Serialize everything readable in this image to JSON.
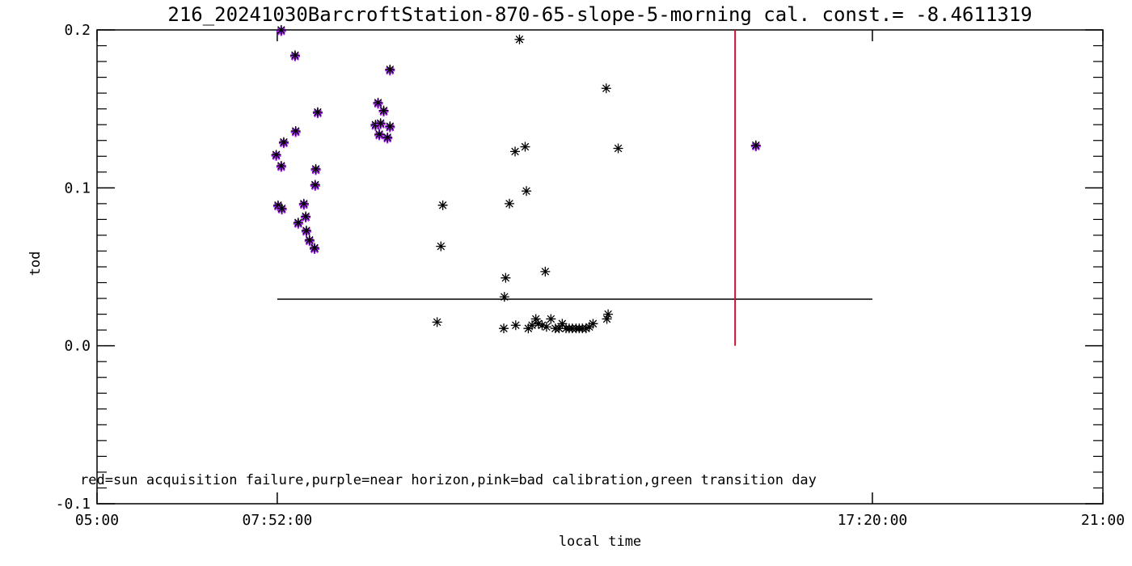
{
  "title": "216_20241030BarcroftStation-870-65-slope-5-morning cal. const.= -8.4611319",
  "legend_note": "red=sun acquisition failure,purple=near horizon,pink=bad calibration,green transition day",
  "colors": {
    "foreground": "#000000",
    "purple_point": "#A020F0",
    "vertical_line": "#C81035",
    "background": "#ffffff"
  },
  "chart_data": {
    "type": "scatter",
    "title": "216_20241030BarcroftStation-870-65-slope-5-morning cal. const.= -8.4611319",
    "xlabel": "local time",
    "ylabel": "tod",
    "x_range_hours": [
      5,
      21
    ],
    "ylim": [
      -0.1,
      0.2
    ],
    "grid": false,
    "marker": "asterisk",
    "x_ticks": [
      {
        "label": "05:00",
        "t": 5.0
      },
      {
        "label": "07:52:00",
        "t": 7.8667
      },
      {
        "label": "17:20:00",
        "t": 17.3333
      },
      {
        "label": "21:00",
        "t": 21.0
      }
    ],
    "y_ticks": [
      {
        "label": "0.2",
        "v": 0.2
      },
      {
        "label": "0.1",
        "v": 0.1
      },
      {
        "label": "0.0",
        "v": 0.0
      },
      {
        "label": "-0.1",
        "v": -0.1
      }
    ],
    "y_minor_step": 0.01,
    "annotations": {
      "horizontal_line": {
        "v": 0.0295,
        "t_start": 7.8667,
        "t_end": 17.3333,
        "color": "#000000"
      },
      "vertical_line": {
        "t": 15.15,
        "v_top": 0.2,
        "v_bottom": 0.0,
        "color": "#C81035"
      }
    },
    "series": [
      {
        "name": "near horizon (purple over black)",
        "color": "#A020F0",
        "points": [
          [
            7.93,
            0.2
          ],
          [
            8.15,
            0.184
          ],
          [
            9.66,
            0.175
          ],
          [
            9.47,
            0.154
          ],
          [
            9.56,
            0.149
          ],
          [
            8.51,
            0.148
          ],
          [
            8.16,
            0.136
          ],
          [
            7.97,
            0.129
          ],
          [
            9.43,
            0.14
          ],
          [
            9.51,
            0.141
          ],
          [
            9.66,
            0.139
          ],
          [
            9.49,
            0.134
          ],
          [
            9.62,
            0.132
          ],
          [
            7.85,
            0.121
          ],
          [
            7.93,
            0.114
          ],
          [
            8.48,
            0.112
          ],
          [
            8.47,
            0.102
          ],
          [
            7.88,
            0.089
          ],
          [
            7.94,
            0.087
          ],
          [
            8.29,
            0.09
          ],
          [
            8.32,
            0.082
          ],
          [
            8.2,
            0.078
          ],
          [
            8.33,
            0.073
          ],
          [
            8.38,
            0.067
          ],
          [
            8.46,
            0.062
          ],
          [
            15.48,
            0.127
          ]
        ]
      },
      {
        "name": "good (black)",
        "color": "#000000",
        "points": [
          [
            11.72,
            0.194
          ],
          [
            13.1,
            0.163
          ],
          [
            11.65,
            0.123
          ],
          [
            11.81,
            0.126
          ],
          [
            13.29,
            0.125
          ],
          [
            11.83,
            0.098
          ],
          [
            10.5,
            0.089
          ],
          [
            11.56,
            0.09
          ],
          [
            10.47,
            0.063
          ],
          [
            12.13,
            0.047
          ],
          [
            11.5,
            0.043
          ],
          [
            11.48,
            0.031
          ],
          [
            10.41,
            0.015
          ],
          [
            11.47,
            0.011
          ],
          [
            11.66,
            0.013
          ],
          [
            11.86,
            0.011
          ],
          [
            11.92,
            0.013
          ],
          [
            11.98,
            0.017
          ],
          [
            12.02,
            0.014
          ],
          [
            12.08,
            0.013
          ],
          [
            12.15,
            0.012
          ],
          [
            12.22,
            0.017
          ],
          [
            12.29,
            0.011
          ],
          [
            12.35,
            0.011
          ],
          [
            12.4,
            0.014
          ],
          [
            12.46,
            0.011
          ],
          [
            12.51,
            0.011
          ],
          [
            12.56,
            0.011
          ],
          [
            12.62,
            0.011
          ],
          [
            12.67,
            0.011
          ],
          [
            12.72,
            0.011
          ],
          [
            12.78,
            0.011
          ],
          [
            12.83,
            0.012
          ],
          [
            12.89,
            0.014
          ],
          [
            13.13,
            0.02
          ],
          [
            13.11,
            0.017
          ]
        ]
      }
    ]
  }
}
